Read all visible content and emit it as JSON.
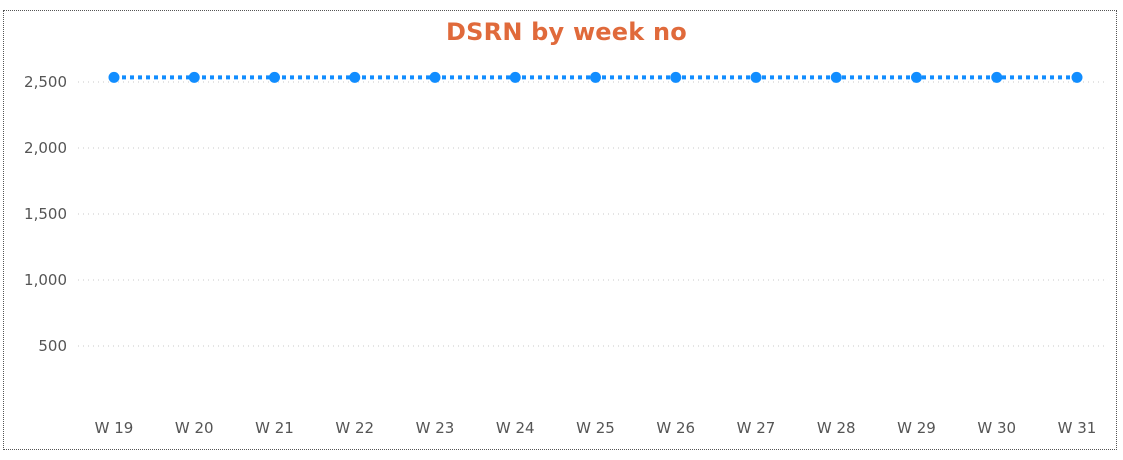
{
  "chart_data": {
    "type": "line",
    "title": "DSRN by week no",
    "xlabel": "",
    "ylabel": "",
    "categories": [
      "W 19",
      "W 20",
      "W 21",
      "W 22",
      "W 23",
      "W 24",
      "W 25",
      "W 26",
      "W 27",
      "W 28",
      "W 29",
      "W 30",
      "W 31"
    ],
    "series": [
      {
        "values": [
          2535,
          2535,
          2535,
          2535,
          2535,
          2535,
          2535,
          2535,
          2535,
          2535,
          2535,
          2535,
          2535
        ]
      }
    ],
    "y_ticks": [
      500,
      1000,
      1500,
      2000,
      2500
    ],
    "y_tick_labels": [
      "500",
      "1,000",
      "1,500",
      "2,000",
      "2,500"
    ],
    "ylim": [
      0,
      2900
    ],
    "grid": true,
    "line_style": "dotted",
    "colors": {
      "title": "#E06A3B",
      "series": "#118DFF",
      "grid": "#C8C8C8",
      "tick": "#555555"
    }
  }
}
